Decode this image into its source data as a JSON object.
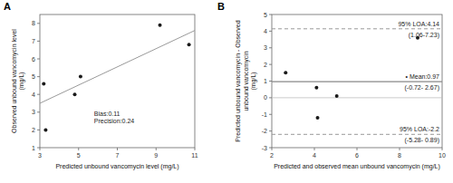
{
  "chart_data": [
    {
      "type": "scatter",
      "panel_label": "A",
      "x_label": "Predicted unbound vancomycin level (mg/L)",
      "y_label": "Observed unbound vancomycin level\n(mg/L)",
      "series": [
        {
          "type": "scatter",
          "color": "#1a1a1a",
          "x": [
            3.2,
            3.3,
            4.8,
            5.1,
            9.2,
            10.7
          ],
          "values": [
            4.6,
            2.0,
            4.0,
            5.0,
            7.9,
            6.8
          ]
        },
        {
          "type": "line",
          "color": "#999999",
          "x": [
            3.0,
            11.0
          ],
          "values": [
            3.5,
            7.6
          ]
        }
      ],
      "annotation": "Bias:0.11\nPrecision:0.24",
      "xlim": [
        3,
        11
      ],
      "ylim": [
        1,
        8.5
      ],
      "xticks": [
        3,
        5,
        7,
        9,
        11
      ],
      "yticks": [
        1,
        2,
        3,
        4,
        5,
        6,
        7,
        8
      ],
      "grid": false
    },
    {
      "type": "scatter",
      "panel_label": "B",
      "x_label": "Predicted and observed mean unbound vancomycin (mg/L)",
      "y_label": "Predicted unbound vancomycin - Observed\nunbound vancomycin\n(mg/L)",
      "series": [
        {
          "type": "scatter",
          "color": "#1a1a1a",
          "x": [
            2.65,
            4.1,
            4.15,
            5.05,
            8.85
          ],
          "values": [
            1.5,
            0.6,
            -1.2,
            0.1,
            3.6
          ]
        }
      ],
      "reference_lines": [
        {
          "value": 0,
          "color": "#bbbbbb",
          "line_style": "solid"
        },
        {
          "value": 0.97,
          "color": "#888888",
          "line_style": "solid",
          "label": "• Mean:0.97",
          "ci": "(-0.72- 2.67)"
        },
        {
          "value": 4.14,
          "color": "#999999",
          "line_style": "dashed",
          "label": "95% LOA:4.14",
          "ci": "(1.06-7.23)"
        },
        {
          "value": -2.2,
          "color": "#999999",
          "line_style": "dashed",
          "label": "95% LOA:-2.2",
          "ci": "(-5.28- 0.89)"
        }
      ],
      "xlim": [
        2,
        10
      ],
      "ylim": [
        -3,
        5
      ],
      "xticks": [
        2,
        4,
        6,
        8,
        10
      ],
      "yticks": [
        -3,
        -2,
        -1,
        0,
        1,
        2,
        3,
        4,
        5
      ],
      "grid": false
    }
  ]
}
